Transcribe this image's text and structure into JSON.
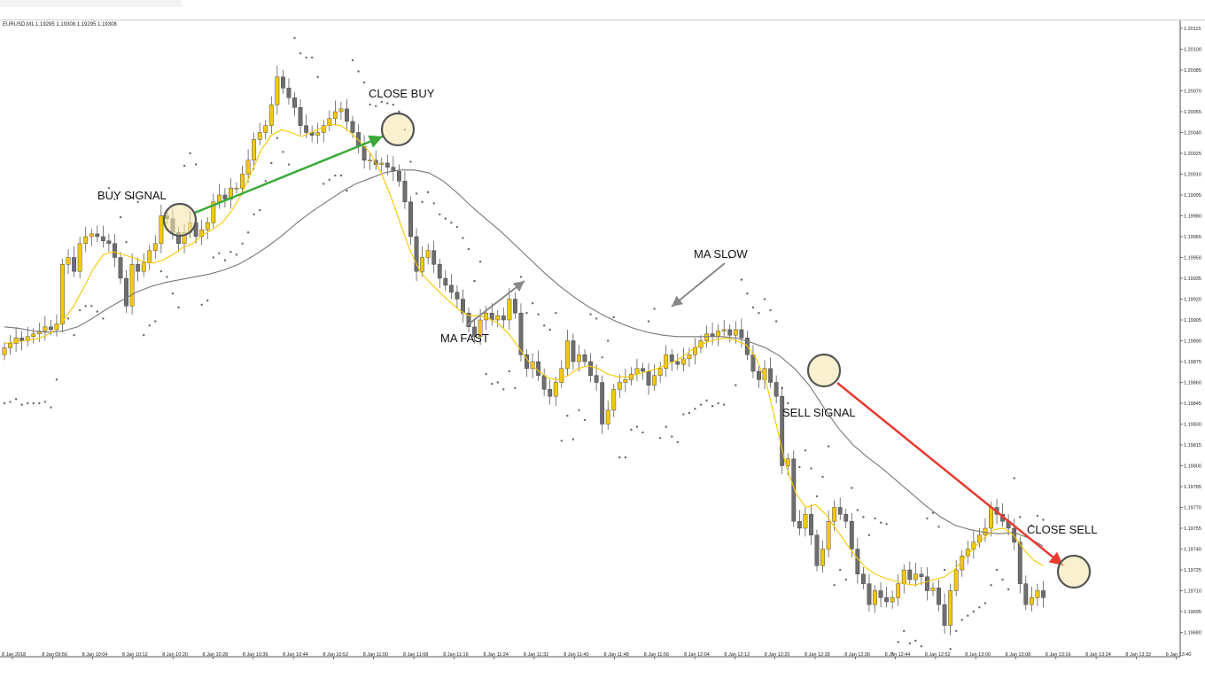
{
  "symbol_info": "EURUSD,M1  1.19295 1.19308 1.19295 1.19308",
  "colors": {
    "bull_body": "#f2c80f",
    "bear_body": "#6e6e6e",
    "ma_fast": "#f5c800",
    "ma_slow": "#777777",
    "psar": "#666666",
    "buy_arrow": "#3aaa3a",
    "sell_arrow": "#e83a2f",
    "highlight": "#f5e6b0"
  },
  "chart_data": {
    "type": "candlestick",
    "symbol": "EURUSD",
    "timeframe": "M1",
    "grid": false,
    "y_ticks": [
      "1.20115",
      "1.20100",
      "1.20085",
      "1.20070",
      "1.20055",
      "1.20040",
      "1.20025",
      "1.20010",
      "1.19995",
      "1.19980",
      "1.19965",
      "1.19950",
      "1.19935",
      "1.19920",
      "1.19905",
      "1.19890",
      "1.19875",
      "1.19860",
      "1.19845",
      "1.19830",
      "1.19815",
      "1.19800",
      "1.19785",
      "1.19770",
      "1.19755",
      "1.19740",
      "1.19725",
      "1.19710",
      "1.19695",
      "1.19680"
    ],
    "x_ticks": [
      "8 Jan 2018",
      "8 Jan 09:56",
      "8 Jan 10:04",
      "8 Jan 10:12",
      "8 Jan 10:20",
      "8 Jan 10:28",
      "8 Jan 10:36",
      "8 Jan 10:44",
      "8 Jan 10:52",
      "8 Jan 11:00",
      "8 Jan 11:08",
      "8 Jan 11:16",
      "8 Jan 11:24",
      "8 Jan 11:32",
      "8 Jan 11:40",
      "8 Jan 11:48",
      "8 Jan 11:56",
      "8 Jan 12:04",
      "8 Jan 12:12",
      "8 Jan 12:20",
      "8 Jan 12:28",
      "8 Jan 12:36",
      "8 Jan 12:44",
      "8 Jan 12:52",
      "8 Jan 13:00",
      "8 Jan 13:08",
      "8 Jan 13:16",
      "8 Jan 13:24",
      "8 Jan 13:32",
      "8 Jan 13:40"
    ],
    "close": [
      1.19885,
      1.19888,
      1.19892,
      1.1989,
      1.19893,
      1.19895,
      1.19897,
      1.199,
      1.19898,
      1.19902,
      1.19945,
      1.1995,
      1.1994,
      1.1996,
      1.19965,
      1.19967,
      1.19965,
      1.19962,
      1.1996,
      1.1995,
      1.19935,
      1.19915,
      1.19945,
      1.1994,
      1.19946,
      1.19955,
      1.1996,
      1.1998,
      1.19978,
      1.19968,
      1.1996,
      1.19968,
      1.19975,
      1.19965,
      1.1997,
      1.19975,
      1.1999,
      1.19995,
      1.19992,
      1.2,
      1.2,
      1.2001,
      1.2002,
      1.20035,
      1.2004,
      1.20045,
      1.2006,
      1.2008,
      1.20072,
      1.20065,
      1.20058,
      1.20045,
      1.2004,
      1.20038,
      1.2004,
      1.20045,
      1.2005,
      1.20055,
      1.20057,
      1.20048,
      1.2004,
      1.2003,
      1.2002,
      1.2002,
      1.20017,
      1.20018,
      1.20015,
      1.20012,
      1.20005,
      1.1999,
      1.19965,
      1.1994,
      1.1995,
      1.19955,
      1.19945,
      1.19935,
      1.1993,
      1.19925,
      1.1992,
      1.1991,
      1.199,
      1.19893,
      1.19905,
      1.1991,
      1.19905,
      1.19908,
      1.19905,
      1.1992,
      1.1991,
      1.1988,
      1.1987,
      1.19875,
      1.19865,
      1.19855,
      1.1985,
      1.1986,
      1.1987,
      1.1989,
      1.19875,
      1.1988,
      1.19875,
      1.19865,
      1.1986,
      1.1983,
      1.1984,
      1.19855,
      1.1986,
      1.19862,
      1.19866,
      1.1987,
      1.19868,
      1.19858,
      1.19865,
      1.1987,
      1.1988,
      1.19875,
      1.19873,
      1.19877,
      1.1988,
      1.19885,
      1.1989,
      1.19895,
      1.19893,
      1.19897,
      1.19898,
      1.19894,
      1.19898,
      1.19892,
      1.1988,
      1.19868,
      1.19862,
      1.1987,
      1.1986,
      1.1985,
      1.198,
      1.19805,
      1.1976,
      1.19755,
      1.19765,
      1.1975,
      1.19728,
      1.1974,
      1.1976,
      1.1977,
      1.19765,
      1.1976,
      1.1974,
      1.19722,
      1.19715,
      1.197,
      1.1971,
      1.19705,
      1.19702,
      1.19705,
      1.19715,
      1.19725,
      1.19718,
      1.19722,
      1.1972,
      1.1971,
      1.19712,
      1.197,
      1.19685,
      1.1971,
      1.19725,
      1.19735,
      1.1974,
      1.19745,
      1.1975,
      1.19755,
      1.1977,
      1.19765,
      1.1976,
      1.19755,
      1.19745,
      1.19715,
      1.197,
      1.19705,
      1.1971,
      1.19705
    ],
    "ma_fast_values": [
      1.19888,
      1.19889,
      1.1989,
      1.19891,
      1.19893,
      1.19897,
      1.19905,
      1.19915,
      1.19928,
      1.19942,
      1.19952,
      1.19954,
      1.19952,
      1.1995,
      1.19947,
      1.19946,
      1.19948,
      1.19952,
      1.19957,
      1.1996,
      1.19966,
      1.1997,
      1.19975,
      1.19984,
      1.19996,
      1.20012,
      1.20028,
      1.20038,
      1.20042,
      1.2004,
      1.20037,
      1.2004,
      1.20043,
      1.20046,
      1.20045,
      1.2004,
      1.20033,
      1.20025,
      1.20012,
      1.19995,
      1.19975,
      1.19955,
      1.1994,
      1.19932,
      1.19925,
      1.19918,
      1.19912,
      1.19908,
      1.19908,
      1.19906,
      1.19902,
      1.19895,
      1.19885,
      1.19875,
      1.19868,
      1.19863,
      1.19862,
      1.19865,
      1.1987,
      1.19872,
      1.1987,
      1.19866,
      1.19864,
      1.19864,
      1.19866,
      1.19868,
      1.1987,
      1.19873,
      1.19876,
      1.19881,
      1.19886,
      1.19889,
      1.19891,
      1.19892,
      1.1989,
      1.19887,
      1.19877,
      1.1986,
      1.1983,
      1.198,
      1.1978,
      1.1977,
      1.19772,
      1.19765,
      1.19755,
      1.19745,
      1.19735,
      1.19727,
      1.19722,
      1.19719,
      1.19717,
      1.19715,
      1.19714,
      1.19716,
      1.19718,
      1.1972,
      1.19725,
      1.19733,
      1.19741,
      1.19748,
      1.19754,
      1.19755,
      1.1975,
      1.1974,
      1.19732,
      1.19728
    ],
    "ma_slow_values": [
      1.199,
      1.19899,
      1.19897,
      1.19896,
      1.19897,
      1.199,
      1.19906,
      1.19913,
      1.19919,
      1.19925,
      1.19929,
      1.19932,
      1.19934,
      1.19936,
      1.19938,
      1.19941,
      1.19945,
      1.19951,
      1.19958,
      1.19966,
      1.19975,
      1.19983,
      1.1999,
      1.19997,
      1.20003,
      1.20007,
      1.20011,
      1.20013,
      1.20013,
      1.20011,
      1.20005,
      1.19996,
      1.19986,
      1.19977,
      1.19968,
      1.19958,
      1.19948,
      1.19938,
      1.19929,
      1.19921,
      1.19914,
      1.19908,
      1.19903,
      1.19899,
      1.19896,
      1.19894,
      1.19893,
      1.19893,
      1.19893,
      1.19893,
      1.19892,
      1.19889,
      1.19885,
      1.19879,
      1.1987,
      1.19858,
      1.19842,
      1.19827,
      1.19815,
      1.19806,
      1.19798,
      1.19789,
      1.1978,
      1.19771,
      1.19763,
      1.19757,
      1.19754,
      1.19752,
      1.19751,
      1.19752,
      1.19748,
      1.19742
    ],
    "annotations": [
      {
        "label": "BUY SIGNAL",
        "type": "circle"
      },
      {
        "label": "CLOSE BUY",
        "type": "circle"
      },
      {
        "label": "MA SLOW",
        "type": "pointer"
      },
      {
        "label": "MA FAST",
        "type": "pointer"
      },
      {
        "label": "SELL SIGNAL",
        "type": "circle"
      },
      {
        "label": "CLOSE SELL",
        "type": "circle"
      }
    ]
  }
}
